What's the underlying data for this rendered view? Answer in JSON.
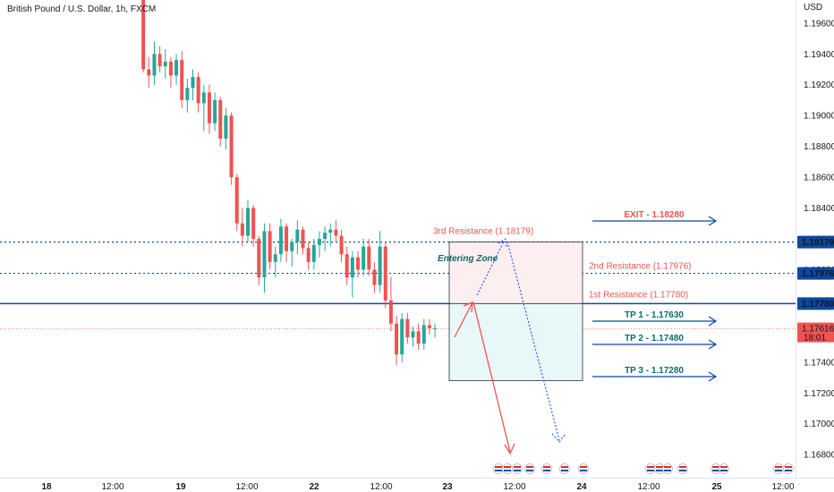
{
  "header": {
    "title": "British Pound / U.S. Dollar, 1h, FXCM"
  },
  "currency_label": "USD",
  "colors": {
    "bull": "#26a69a",
    "bear": "#ef5350",
    "level": "#0d47a1",
    "resistance_text": "#ef5350",
    "tp_text": "#0d6b6b",
    "current": "#ef5350"
  },
  "chart_data": {
    "type": "candlestick",
    "title": "British Pound / U.S. Dollar, 1h, FXCM",
    "ylim": [
      1.1665,
      1.1975
    ],
    "y_ticks": [
      "1.19600",
      "1.19400",
      "1.19200",
      "1.19000",
      "1.18800",
      "1.18600",
      "1.18400",
      "1.18200",
      "1.18000",
      "1.17800",
      "1.17600",
      "1.17400",
      "1.17200",
      "1.17000",
      "1.16800"
    ],
    "x_ticks": [
      "18",
      "12:00",
      "19",
      "12:00",
      "22",
      "12:00",
      "23",
      "12:00",
      "24",
      "12:00",
      "25",
      "12:00"
    ],
    "price_labels": [
      {
        "text": "1.18179",
        "value": 1.18179,
        "style": "level"
      },
      {
        "text": "1.17976",
        "value": 1.17976,
        "style": "level"
      },
      {
        "text": "1.17780",
        "value": 1.1778,
        "style": "level"
      },
      {
        "text": "1.17616",
        "sub": "18:01",
        "value": 1.17616,
        "style": "current"
      }
    ],
    "candles": [
      [
        1.199,
        1.1995,
        1.1975,
        1.1982
      ],
      [
        1.1982,
        1.1984,
        1.1928,
        1.193
      ],
      [
        1.193,
        1.1938,
        1.1918,
        1.1926
      ],
      [
        1.1926,
        1.1948,
        1.192,
        1.194
      ],
      [
        1.194,
        1.1945,
        1.1928,
        1.1932
      ],
      [
        1.1932,
        1.1943,
        1.1924,
        1.1935
      ],
      [
        1.1935,
        1.1938,
        1.1918,
        1.1926
      ],
      [
        1.1926,
        1.194,
        1.192,
        1.1936
      ],
      [
        1.1936,
        1.1942,
        1.1905,
        1.191
      ],
      [
        1.191,
        1.1924,
        1.1902,
        1.1918
      ],
      [
        1.1918,
        1.193,
        1.191,
        1.1925
      ],
      [
        1.1925,
        1.1928,
        1.1902,
        1.1908
      ],
      [
        1.1908,
        1.192,
        1.189,
        1.1915
      ],
      [
        1.1915,
        1.192,
        1.1888,
        1.1895
      ],
      [
        1.1895,
        1.1915,
        1.189,
        1.191
      ],
      [
        1.191,
        1.1912,
        1.188,
        1.1885
      ],
      [
        1.1885,
        1.1905,
        1.1878,
        1.19
      ],
      [
        1.19,
        1.1902,
        1.1855,
        1.186
      ],
      [
        1.186,
        1.1862,
        1.1825,
        1.183
      ],
      [
        1.183,
        1.184,
        1.1815,
        1.1822
      ],
      [
        1.1822,
        1.1845,
        1.1818,
        1.184
      ],
      [
        1.184,
        1.1842,
        1.1815,
        1.182
      ],
      [
        1.182,
        1.1822,
        1.179,
        1.1795
      ],
      [
        1.1795,
        1.183,
        1.1785,
        1.1825
      ],
      [
        1.1825,
        1.183,
        1.18,
        1.1805
      ],
      [
        1.1805,
        1.1815,
        1.1795,
        1.181
      ],
      [
        1.181,
        1.1833,
        1.1805,
        1.1828
      ],
      [
        1.1828,
        1.183,
        1.1805,
        1.1812
      ],
      [
        1.1812,
        1.182,
        1.1802,
        1.1818
      ],
      [
        1.1818,
        1.1832,
        1.181,
        1.1826
      ],
      [
        1.1826,
        1.1828,
        1.181,
        1.1814
      ],
      [
        1.1814,
        1.1818,
        1.18,
        1.1805
      ],
      [
        1.1805,
        1.182,
        1.18,
        1.1816
      ],
      [
        1.1816,
        1.1825,
        1.1808,
        1.182
      ],
      [
        1.182,
        1.1828,
        1.1812,
        1.1824
      ],
      [
        1.1824,
        1.183,
        1.1815,
        1.1826
      ],
      [
        1.1826,
        1.1832,
        1.1818,
        1.1822
      ],
      [
        1.1822,
        1.1826,
        1.1805,
        1.181
      ],
      [
        1.181,
        1.1815,
        1.179,
        1.1795
      ],
      [
        1.1795,
        1.1812,
        1.1782,
        1.1808
      ],
      [
        1.1808,
        1.1812,
        1.1795,
        1.18
      ],
      [
        1.18,
        1.182,
        1.1796,
        1.1815
      ],
      [
        1.1815,
        1.182,
        1.1796,
        1.18
      ],
      [
        1.18,
        1.1805,
        1.1785,
        1.179
      ],
      [
        1.179,
        1.1825,
        1.1785,
        1.1815
      ],
      [
        1.1815,
        1.1818,
        1.1775,
        1.178
      ],
      [
        1.178,
        1.1795,
        1.176,
        1.1765
      ],
      [
        1.1765,
        1.177,
        1.1738,
        1.1745
      ],
      [
        1.1745,
        1.1772,
        1.174,
        1.1768
      ],
      [
        1.1768,
        1.1772,
        1.1752,
        1.1756
      ],
      [
        1.1756,
        1.1763,
        1.175,
        1.176
      ],
      [
        1.176,
        1.1765,
        1.1748,
        1.1752
      ],
      [
        1.1752,
        1.1768,
        1.1748,
        1.1764
      ],
      [
        1.1764,
        1.1768,
        1.1758,
        1.1762
      ],
      [
        1.1762,
        1.1765,
        1.1756,
        1.1762
      ]
    ],
    "zones": [
      {
        "name": "Entering Zone",
        "from": 1.1778,
        "to": 1.18179,
        "color": "#fdeef0"
      },
      {
        "name": "",
        "from": 1.1728,
        "to": 1.1778,
        "color": "#e8f7f7"
      }
    ],
    "annotations": [
      {
        "text": "3rd Resistance (1.18179)",
        "kind": "resistance"
      },
      {
        "text": "2nd Resistance (1.17976)",
        "kind": "resistance"
      },
      {
        "text": "1st Resistance (1.17780)",
        "kind": "resistance"
      },
      {
        "text": "Entering Zone",
        "kind": "zone"
      },
      {
        "text": "EXIT - 1.18280",
        "kind": "exit"
      },
      {
        "text": "TP 1 - 1.17630",
        "kind": "tp"
      },
      {
        "text": "TP 2 - 1.17480",
        "kind": "tp"
      },
      {
        "text": "TP 3 - 1.17280",
        "kind": "tp"
      }
    ],
    "target_levels": [
      1.1828,
      1.1763,
      1.1748,
      1.1728
    ],
    "grid": false,
    "legend": "none"
  }
}
